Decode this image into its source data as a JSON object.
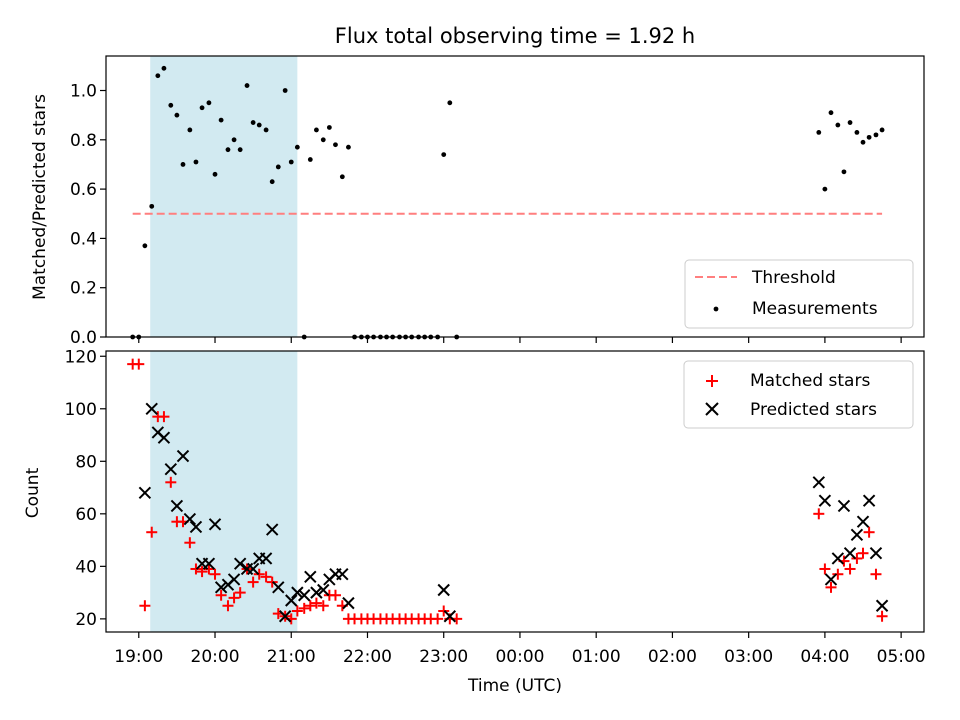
{
  "chart_data": [
    {
      "type": "scatter",
      "title": "Flux total observing time = 1.92 h",
      "xlabel": "",
      "ylabel": "Matched/Predicted stars",
      "xlim": [
        18.57,
        29.3
      ],
      "ylim": [
        0.0,
        1.14
      ],
      "y_ticks": [
        0.0,
        0.2,
        0.4,
        0.6,
        0.8,
        1.0
      ],
      "y_tick_labels": [
        "0.0",
        "0.2",
        "0.4",
        "0.6",
        "0.8",
        "1.0"
      ],
      "highlight_span": [
        19.15,
        21.08
      ],
      "highlight_color": "#add8e6",
      "legend_position": "lower right",
      "threshold": {
        "name": "Threshold",
        "y": 0.5,
        "x_range": [
          18.92,
          28.75
        ],
        "color": "#ff7f7f",
        "style": "dashed"
      },
      "series": [
        {
          "name": "Measurements",
          "marker": "dot",
          "color": "#000000",
          "points": [
            [
              18.92,
              0.0
            ],
            [
              19.0,
              0.0
            ],
            [
              19.08,
              0.37
            ],
            [
              19.17,
              0.53
            ],
            [
              19.25,
              1.06
            ],
            [
              19.33,
              1.09
            ],
            [
              19.42,
              0.94
            ],
            [
              19.5,
              0.9
            ],
            [
              19.58,
              0.7
            ],
            [
              19.67,
              0.84
            ],
            [
              19.75,
              0.71
            ],
            [
              19.83,
              0.93
            ],
            [
              19.92,
              0.95
            ],
            [
              20.0,
              0.66
            ],
            [
              20.08,
              0.88
            ],
            [
              20.17,
              0.76
            ],
            [
              20.25,
              0.8
            ],
            [
              20.33,
              0.76
            ],
            [
              20.42,
              1.02
            ],
            [
              20.5,
              0.87
            ],
            [
              20.58,
              0.86
            ],
            [
              20.67,
              0.84
            ],
            [
              20.75,
              0.63
            ],
            [
              20.83,
              0.69
            ],
            [
              20.92,
              1.0
            ],
            [
              21.0,
              0.71
            ],
            [
              21.08,
              0.77
            ],
            [
              21.17,
              0.0
            ],
            [
              21.25,
              0.72
            ],
            [
              21.33,
              0.84
            ],
            [
              21.42,
              0.8
            ],
            [
              21.5,
              0.85
            ],
            [
              21.58,
              0.78
            ],
            [
              21.67,
              0.65
            ],
            [
              21.75,
              0.77
            ],
            [
              21.83,
              0.0
            ],
            [
              21.92,
              0.0
            ],
            [
              22.0,
              0.0
            ],
            [
              22.08,
              0.0
            ],
            [
              22.17,
              0.0
            ],
            [
              22.25,
              0.0
            ],
            [
              22.33,
              0.0
            ],
            [
              22.42,
              0.0
            ],
            [
              22.5,
              0.0
            ],
            [
              22.58,
              0.0
            ],
            [
              22.67,
              0.0
            ],
            [
              22.75,
              0.0
            ],
            [
              22.83,
              0.0
            ],
            [
              22.92,
              0.0
            ],
            [
              23.0,
              0.74
            ],
            [
              23.08,
              0.95
            ],
            [
              23.17,
              0.0
            ],
            [
              27.92,
              0.83
            ],
            [
              28.0,
              0.6
            ],
            [
              28.08,
              0.91
            ],
            [
              28.17,
              0.86
            ],
            [
              28.25,
              0.67
            ],
            [
              28.33,
              0.87
            ],
            [
              28.42,
              0.83
            ],
            [
              28.5,
              0.79
            ],
            [
              28.58,
              0.81
            ],
            [
              28.67,
              0.82
            ],
            [
              28.75,
              0.84
            ]
          ]
        }
      ]
    },
    {
      "type": "scatter",
      "title": "",
      "xlabel": "Time (UTC)",
      "ylabel": "Count",
      "xlim": [
        18.57,
        29.3
      ],
      "ylim": [
        15,
        122
      ],
      "y_ticks": [
        20,
        40,
        60,
        80,
        100,
        120
      ],
      "y_tick_labels": [
        "20",
        "40",
        "60",
        "80",
        "100",
        "120"
      ],
      "x_ticks": [
        19,
        20,
        21,
        22,
        23,
        24,
        25,
        26,
        27,
        28,
        29
      ],
      "x_tick_labels": [
        "19:00",
        "20:00",
        "21:00",
        "22:00",
        "23:00",
        "00:00",
        "01:00",
        "02:00",
        "03:00",
        "04:00",
        "05:00"
      ],
      "highlight_span": [
        19.15,
        21.08
      ],
      "highlight_color": "#add8e6",
      "legend_position": "upper right",
      "series": [
        {
          "name": "Matched stars",
          "marker": "plus",
          "color": "#ff0000",
          "points": [
            [
              18.92,
              117
            ],
            [
              19.0,
              117
            ],
            [
              19.08,
              25
            ],
            [
              19.17,
              53
            ],
            [
              19.25,
              97
            ],
            [
              19.33,
              97
            ],
            [
              19.42,
              72
            ],
            [
              19.5,
              57
            ],
            [
              19.58,
              57
            ],
            [
              19.67,
              49
            ],
            [
              19.75,
              39
            ],
            [
              19.83,
              38
            ],
            [
              19.92,
              39
            ],
            [
              20.0,
              37
            ],
            [
              20.08,
              29
            ],
            [
              20.17,
              25
            ],
            [
              20.25,
              28
            ],
            [
              20.33,
              30
            ],
            [
              20.42,
              39
            ],
            [
              20.5,
              34
            ],
            [
              20.58,
              37
            ],
            [
              20.67,
              36
            ],
            [
              20.75,
              34
            ],
            [
              20.83,
              22
            ],
            [
              20.92,
              21
            ],
            [
              21.0,
              20
            ],
            [
              21.08,
              23
            ],
            [
              21.17,
              24
            ],
            [
              21.25,
              25
            ],
            [
              21.33,
              26
            ],
            [
              21.42,
              25
            ],
            [
              21.5,
              29
            ],
            [
              21.58,
              29
            ],
            [
              21.67,
              25
            ],
            [
              21.75,
              20
            ],
            [
              21.83,
              20
            ],
            [
              21.92,
              20
            ],
            [
              22.0,
              20
            ],
            [
              22.08,
              20
            ],
            [
              22.17,
              20
            ],
            [
              22.25,
              20
            ],
            [
              22.33,
              20
            ],
            [
              22.42,
              20
            ],
            [
              22.5,
              20
            ],
            [
              22.58,
              20
            ],
            [
              22.67,
              20
            ],
            [
              22.75,
              20
            ],
            [
              22.83,
              20
            ],
            [
              22.92,
              20
            ],
            [
              23.0,
              23
            ],
            [
              23.08,
              20
            ],
            [
              23.17,
              20
            ],
            [
              27.92,
              60
            ],
            [
              28.0,
              39
            ],
            [
              28.08,
              32
            ],
            [
              28.17,
              37
            ],
            [
              28.25,
              42
            ],
            [
              28.33,
              39
            ],
            [
              28.42,
              43
            ],
            [
              28.5,
              45
            ],
            [
              28.58,
              53
            ],
            [
              28.67,
              37
            ],
            [
              28.75,
              21
            ]
          ]
        },
        {
          "name": "Predicted stars",
          "marker": "x",
          "color": "#000000",
          "points": [
            [
              19.08,
              68
            ],
            [
              19.17,
              100
            ],
            [
              19.25,
              91
            ],
            [
              19.33,
              89
            ],
            [
              19.42,
              77
            ],
            [
              19.5,
              63
            ],
            [
              19.58,
              82
            ],
            [
              19.67,
              58
            ],
            [
              19.75,
              55
            ],
            [
              19.83,
              41
            ],
            [
              19.92,
              41
            ],
            [
              20.0,
              56
            ],
            [
              20.08,
              32
            ],
            [
              20.17,
              33
            ],
            [
              20.25,
              35
            ],
            [
              20.33,
              41
            ],
            [
              20.42,
              39
            ],
            [
              20.5,
              39
            ],
            [
              20.58,
              43
            ],
            [
              20.67,
              43
            ],
            [
              20.75,
              54
            ],
            [
              20.83,
              32
            ],
            [
              20.92,
              21
            ],
            [
              21.0,
              27
            ],
            [
              21.08,
              30
            ],
            [
              21.17,
              29
            ],
            [
              21.25,
              36
            ],
            [
              21.33,
              30
            ],
            [
              21.42,
              31
            ],
            [
              21.5,
              35
            ],
            [
              21.58,
              37
            ],
            [
              21.67,
              37
            ],
            [
              21.75,
              26
            ],
            [
              23.0,
              31
            ],
            [
              23.08,
              21
            ],
            [
              27.92,
              72
            ],
            [
              28.0,
              65
            ],
            [
              28.08,
              35
            ],
            [
              28.17,
              43
            ],
            [
              28.25,
              63
            ],
            [
              28.33,
              45
            ],
            [
              28.42,
              52
            ],
            [
              28.5,
              57
            ],
            [
              28.58,
              65
            ],
            [
              28.67,
              45
            ],
            [
              28.75,
              25
            ]
          ]
        }
      ]
    }
  ]
}
